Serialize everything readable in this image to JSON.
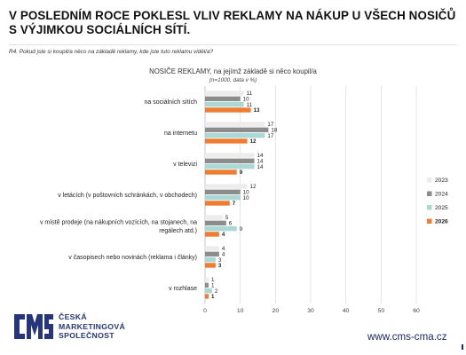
{
  "header": {
    "title_line1": "V POSLEDNÍM ROCE POKLESL VLIV REKLAMY NA NÁKUP U VŠECH NOSIČŮ",
    "title_line2": "S VÝJIMKOU SOCIÁLNÍCH SÍTÍ.",
    "question": "R4. Pokud jste si koupil/a něco na základě reklamy, kde jste tuto reklamu viděl/a?"
  },
  "footer": {
    "logo_line1": "ČESKÁ",
    "logo_line2": "MARKETINGOVÁ",
    "logo_line3": "SPOLEČNOST",
    "website": "www.cms-cma.cz"
  },
  "colors": {
    "2023": "#ececec",
    "2024": "#8c8c8c",
    "2025": "#a9d8d5",
    "2026": "#ee7d31",
    "brand": "#27367a"
  },
  "chart_data": {
    "type": "bar",
    "orientation": "horizontal",
    "title": "NOSIČE REKLAMY, na jejímž základě si něco koupil/a",
    "subtitle": "(n=1000, data v %)",
    "categories": [
      [
        "na sociálních sítích"
      ],
      [
        "na internetu"
      ],
      [
        "v televizi"
      ],
      [
        "v letácích (v poštovních schránkách, v obchodech)"
      ],
      [
        "v místě prodeje (na nákupních vozících, na stojanech, na",
        "regálech atd.)"
      ],
      [
        "v časopisech nebo novinách (reklama i články)"
      ],
      [
        "v rozhlase"
      ]
    ],
    "series": [
      {
        "name": "2023",
        "values": [
          11,
          17,
          14,
          12,
          5,
          4,
          1
        ]
      },
      {
        "name": "2024",
        "values": [
          10,
          18,
          14,
          10,
          6,
          4,
          1
        ]
      },
      {
        "name": "2025",
        "values": [
          11,
          17,
          14,
          10,
          9,
          3,
          2
        ]
      },
      {
        "name": "2026",
        "values": [
          13,
          12,
          9,
          7,
          4,
          3,
          1
        ]
      }
    ],
    "xlim": [
      0,
      60
    ],
    "xticks": [
      0,
      10,
      20,
      30,
      40,
      50,
      60
    ],
    "grid": true,
    "legend": "right",
    "highlight_series": "2026"
  }
}
